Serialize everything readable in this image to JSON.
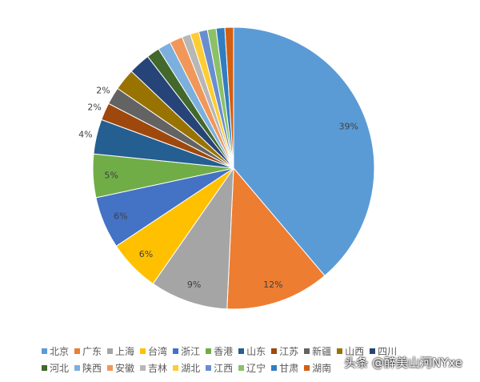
{
  "chart_data": {
    "type": "pie",
    "categories": [
      "北京",
      "广东",
      "上海",
      "台湾",
      "浙江",
      "香港",
      "山东",
      "江苏",
      "新疆",
      "山西",
      "四川",
      "河北",
      "陕西",
      "安徽",
      "吉林",
      "湖北",
      "江西",
      "辽宁",
      "甘肃",
      "湖南"
    ],
    "values": [
      39,
      12,
      9,
      6,
      6,
      5,
      4,
      2,
      2,
      2.5,
      2.5,
      1.5,
      1.5,
      1.5,
      1,
      1,
      1,
      1,
      1,
      1
    ],
    "data_labels": [
      "39%",
      "12%",
      "9%",
      "6%",
      "6%",
      "5%",
      "4%",
      "2%",
      "2%",
      "",
      "",
      "",
      "",
      "",
      "",
      "",
      "",
      "",
      "",
      ""
    ],
    "colors": [
      "#5B9BD5",
      "#ED7D31",
      "#A5A5A5",
      "#FFC000",
      "#4472C4",
      "#70AD47",
      "#255E91",
      "#9E480E",
      "#636363",
      "#997300",
      "#264478",
      "#43682B",
      "#7CAFDD",
      "#F1975A",
      "#B7B7B7",
      "#FFCD33",
      "#698ED0",
      "#8CC168",
      "#327DC2",
      "#D26012"
    ],
    "legend_position": "bottom"
  },
  "watermark": "头条 @醉美山河NYxe"
}
